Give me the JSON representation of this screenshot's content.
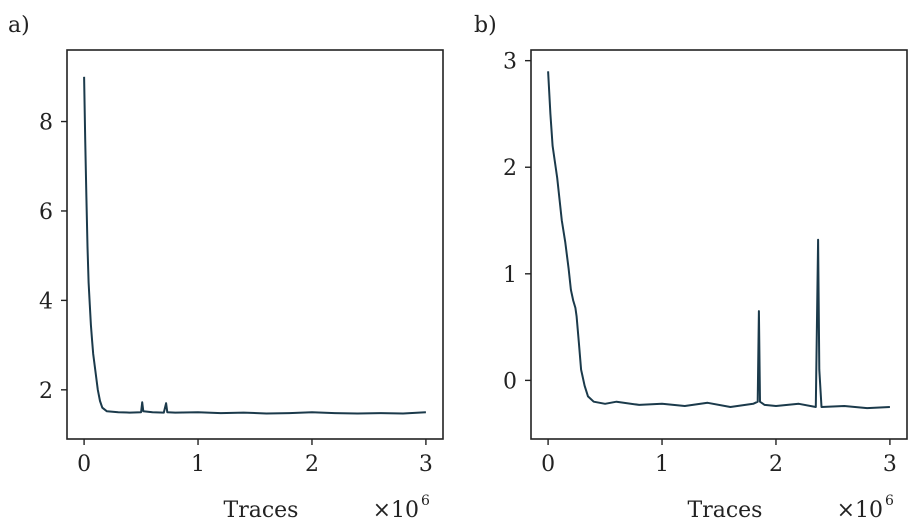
{
  "colors": {
    "series": "#1b3a4b"
  },
  "chart_data": [
    {
      "type": "line",
      "panel_label": "a)",
      "xlabel": "Traces",
      "ylabel": "",
      "x_offset_label": "×10",
      "x_offset_exp": "6",
      "xlim": [
        -0.15,
        3.15
      ],
      "ylim": [
        0.9,
        9.6
      ],
      "xticks": [
        0,
        1,
        2,
        3
      ],
      "xtick_labels": [
        "0",
        "1",
        "2",
        "3"
      ],
      "yticks": [
        2,
        4,
        6,
        8
      ],
      "ytick_labels": [
        "2",
        "4",
        "6",
        "8"
      ],
      "grid": false,
      "series": [
        {
          "x": [
            0.0,
            0.01,
            0.02,
            0.03,
            0.04,
            0.05,
            0.06,
            0.07,
            0.08,
            0.1,
            0.12,
            0.14,
            0.16,
            0.2,
            0.3,
            0.4,
            0.5,
            0.51,
            0.52,
            0.6,
            0.7,
            0.72,
            0.73,
            0.8,
            1.0,
            1.2,
            1.4,
            1.6,
            1.8,
            2.0,
            2.2,
            2.4,
            2.6,
            2.8,
            3.0
          ],
          "y": [
            9.0,
            7.6,
            6.3,
            5.2,
            4.4,
            3.9,
            3.45,
            3.1,
            2.8,
            2.4,
            2.0,
            1.75,
            1.6,
            1.52,
            1.5,
            1.49,
            1.5,
            1.72,
            1.52,
            1.5,
            1.49,
            1.7,
            1.5,
            1.49,
            1.5,
            1.48,
            1.49,
            1.47,
            1.48,
            1.5,
            1.48,
            1.47,
            1.48,
            1.47,
            1.5
          ]
        }
      ]
    },
    {
      "type": "line",
      "panel_label": "b)",
      "xlabel": "Traces",
      "ylabel": "",
      "x_offset_label": "×10",
      "x_offset_exp": "6",
      "xlim": [
        -0.15,
        3.15
      ],
      "ylim": [
        -0.55,
        3.1
      ],
      "xticks": [
        0,
        1,
        2,
        3
      ],
      "xtick_labels": [
        "0",
        "1",
        "2",
        "3"
      ],
      "yticks": [
        0,
        1,
        2,
        3
      ],
      "ytick_labels": [
        "0",
        "1",
        "2",
        "3"
      ],
      "grid": false,
      "series": [
        {
          "x": [
            0.0,
            0.02,
            0.04,
            0.06,
            0.08,
            0.1,
            0.12,
            0.15,
            0.18,
            0.2,
            0.22,
            0.24,
            0.25,
            0.27,
            0.29,
            0.3,
            0.32,
            0.35,
            0.4,
            0.5,
            0.6,
            0.8,
            1.0,
            1.2,
            1.4,
            1.6,
            1.8,
            1.84,
            1.85,
            1.86,
            1.9,
            2.0,
            2.2,
            2.35,
            2.37,
            2.38,
            2.4,
            2.6,
            2.8,
            3.0
          ],
          "y": [
            2.9,
            2.5,
            2.2,
            2.05,
            1.9,
            1.7,
            1.5,
            1.3,
            1.05,
            0.85,
            0.75,
            0.68,
            0.6,
            0.35,
            0.1,
            0.05,
            -0.05,
            -0.15,
            -0.2,
            -0.22,
            -0.2,
            -0.23,
            -0.22,
            -0.24,
            -0.21,
            -0.25,
            -0.22,
            -0.2,
            0.65,
            -0.2,
            -0.23,
            -0.24,
            -0.22,
            -0.25,
            1.32,
            0.1,
            -0.25,
            -0.24,
            -0.26,
            -0.25
          ]
        }
      ]
    }
  ]
}
